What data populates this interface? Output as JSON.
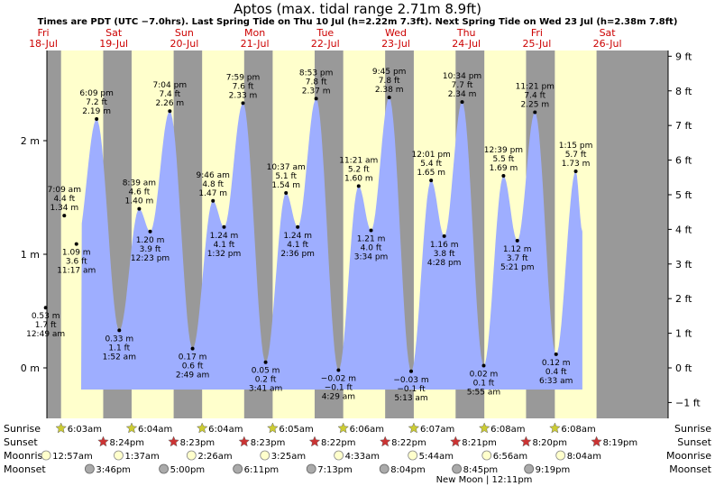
{
  "title": "Aptos (max. tidal range 2.71m 8.9ft)",
  "subtitle": "Times are PDT (UTC −7.0hrs). Last Spring Tide on Thu 10 Jul (h=2.22m 7.3ft). Next Spring Tide on Wed 23 Jul (h=2.38m 7.8ft)",
  "colors": {
    "night": "#999999",
    "day": "#ffffcc",
    "water": "#9eaeff",
    "weekday": "#cc0000",
    "sunrise_star": "#cccc33",
    "sunset_star": "#cc3333",
    "moonrise": "#ffffcc",
    "moonset": "#aaaaaa"
  },
  "chart_data": {
    "type": "area",
    "y_left_ticks": [
      "2 m",
      "1 m",
      "0 m"
    ],
    "y_right_ticks": [
      "9 ft",
      "8 ft",
      "7 ft",
      "6 ft",
      "5 ft",
      "4 ft",
      "3 ft",
      "2 ft",
      "1 ft",
      "0 ft",
      "−1 ft"
    ],
    "ylim_m": [
      -0.75,
      2.92
    ],
    "x_start_day": 18,
    "days": [
      {
        "dow": "Fri",
        "date": "18-Jul"
      },
      {
        "dow": "Sat",
        "date": "19-Jul"
      },
      {
        "dow": "Sun",
        "date": "20-Jul"
      },
      {
        "dow": "Mon",
        "date": "21-Jul"
      },
      {
        "dow": "Tue",
        "date": "22-Jul"
      },
      {
        "dow": "Wed",
        "date": "23-Jul"
      },
      {
        "dow": "Thu",
        "date": "24-Jul"
      },
      {
        "dow": "Fri",
        "date": "25-Jul"
      },
      {
        "dow": "Sat",
        "date": "26-Jul"
      }
    ],
    "tides": [
      {
        "day": 18,
        "hour": 0.82,
        "m": 0.53,
        "lines": [
          "0.53 m",
          "1.7 ft",
          "12:49 am"
        ]
      },
      {
        "day": 18,
        "hour": 7.15,
        "m": 1.34,
        "lines": [
          "7:09 am",
          "4.4 ft",
          "1.34 m"
        ]
      },
      {
        "day": 18,
        "hour": 11.28,
        "m": 1.09,
        "lines": [
          "1.09 m",
          "3.6 ft",
          "11:17 am"
        ]
      },
      {
        "day": 18,
        "hour": 18.15,
        "m": 2.19,
        "lines": [
          "6:09 pm",
          "7.2 ft",
          "2.19 m"
        ]
      },
      {
        "day": 19,
        "hour": 1.87,
        "m": 0.33,
        "lines": [
          "0.33 m",
          "1.1 ft",
          "1:52 am"
        ]
      },
      {
        "day": 19,
        "hour": 8.65,
        "m": 1.4,
        "lines": [
          "8:39 am",
          "4.6 ft",
          "1.40 m"
        ]
      },
      {
        "day": 19,
        "hour": 12.38,
        "m": 1.2,
        "lines": [
          "1.20 m",
          "3.9 ft",
          "12:23 pm"
        ]
      },
      {
        "day": 19,
        "hour": 19.07,
        "m": 2.26,
        "lines": [
          "7:04 pm",
          "7.4 ft",
          "2.26 m"
        ]
      },
      {
        "day": 20,
        "hour": 2.82,
        "m": 0.17,
        "lines": [
          "0.17 m",
          "0.6 ft",
          "2:49 am"
        ]
      },
      {
        "day": 20,
        "hour": 9.77,
        "m": 1.47,
        "lines": [
          "9:46 am",
          "4.8 ft",
          "1.47 m"
        ]
      },
      {
        "day": 20,
        "hour": 13.53,
        "m": 1.24,
        "lines": [
          "1.24 m",
          "4.1 ft",
          "1:32 pm"
        ]
      },
      {
        "day": 20,
        "hour": 19.98,
        "m": 2.33,
        "lines": [
          "7:59 pm",
          "7.6 ft",
          "2.33 m"
        ]
      },
      {
        "day": 21,
        "hour": 3.68,
        "m": 0.05,
        "lines": [
          "0.05 m",
          "0.2 ft",
          "3:41 am"
        ]
      },
      {
        "day": 21,
        "hour": 10.62,
        "m": 1.54,
        "lines": [
          "10:37 am",
          "5.1 ft",
          "1.54 m"
        ]
      },
      {
        "day": 21,
        "hour": 14.6,
        "m": 1.24,
        "lines": [
          "1.24 m",
          "4.1 ft",
          "2:36 pm"
        ]
      },
      {
        "day": 21,
        "hour": 20.88,
        "m": 2.37,
        "lines": [
          "8:53 pm",
          "7.8 ft",
          "2.37 m"
        ]
      },
      {
        "day": 22,
        "hour": 4.48,
        "m": -0.02,
        "lines": [
          "−0.02 m",
          "−0.1 ft",
          "4:29 am"
        ]
      },
      {
        "day": 22,
        "hour": 11.35,
        "m": 1.6,
        "lines": [
          "11:21 am",
          "5.2 ft",
          "1.60 m"
        ]
      },
      {
        "day": 22,
        "hour": 15.57,
        "m": 1.21,
        "lines": [
          "1.21 m",
          "4.0 ft",
          "3:34 pm"
        ]
      },
      {
        "day": 22,
        "hour": 21.75,
        "m": 2.38,
        "lines": [
          "9:45 pm",
          "7.8 ft",
          "2.38 m"
        ]
      },
      {
        "day": 23,
        "hour": 5.22,
        "m": -0.03,
        "lines": [
          "−0.03 m",
          "−0.1 ft",
          "5:13 am"
        ]
      },
      {
        "day": 23,
        "hour": 12.02,
        "m": 1.65,
        "lines": [
          "12:01 pm",
          "5.4 ft",
          "1.65 m"
        ]
      },
      {
        "day": 23,
        "hour": 16.47,
        "m": 1.16,
        "lines": [
          "1.16 m",
          "3.8 ft",
          "4:28 pm"
        ]
      },
      {
        "day": 23,
        "hour": 22.57,
        "m": 2.34,
        "lines": [
          "10:34 pm",
          "7.7 ft",
          "2.34 m"
        ]
      },
      {
        "day": 24,
        "hour": 5.92,
        "m": 0.02,
        "lines": [
          "0.02 m",
          "0.1 ft",
          "5:55 am"
        ]
      },
      {
        "day": 24,
        "hour": 12.65,
        "m": 1.69,
        "lines": [
          "12:39 pm",
          "5.5 ft",
          "1.69 m"
        ]
      },
      {
        "day": 24,
        "hour": 17.35,
        "m": 1.12,
        "lines": [
          "1.12 m",
          "3.7 ft",
          "5:21 pm"
        ]
      },
      {
        "day": 24,
        "hour": 23.35,
        "m": 2.25,
        "lines": [
          "11:21 pm",
          "7.4 ft",
          "2.25 m"
        ]
      },
      {
        "day": 25,
        "hour": 6.55,
        "m": 0.12,
        "lines": [
          "0.12 m",
          "0.4 ft",
          "6:33 am"
        ]
      },
      {
        "day": 25,
        "hour": 13.25,
        "m": 1.73,
        "lines": [
          "1:15 pm",
          "5.7 ft",
          "1.73 m"
        ]
      }
    ],
    "day_periods": [
      {
        "day": 18,
        "sunrise_hour": 6.05,
        "sunset_hour": 20.4
      },
      {
        "day": 19,
        "sunrise_hour": 6.07,
        "sunset_hour": 20.38
      },
      {
        "day": 20,
        "sunrise_hour": 6.07,
        "sunset_hour": 20.38
      },
      {
        "day": 21,
        "sunrise_hour": 6.08,
        "sunset_hour": 20.37
      },
      {
        "day": 22,
        "sunrise_hour": 6.1,
        "sunset_hour": 20.37
      },
      {
        "day": 23,
        "sunrise_hour": 6.12,
        "sunset_hour": 20.35
      },
      {
        "day": 24,
        "sunrise_hour": 6.13,
        "sunset_hour": 20.33
      },
      {
        "day": 25,
        "sunrise_hour": 6.13,
        "sunset_hour": 20.32
      }
    ],
    "data_end": {
      "day": 25,
      "hour": 15.5,
      "m": 1.2
    },
    "data_start": {
      "day": 18,
      "hour": -2.1,
      "m": 2.1
    }
  },
  "rows": {
    "labels": [
      "Sunrise",
      "Sunset",
      "Moonrise",
      "Moonset"
    ],
    "sunrise": [
      {
        "day": 18,
        "hour": 6.05,
        "label": "6:03am"
      },
      {
        "day": 19,
        "hour": 6.07,
        "label": "6:04am"
      },
      {
        "day": 20,
        "hour": 6.07,
        "label": "6:04am"
      },
      {
        "day": 21,
        "hour": 6.08,
        "label": "6:05am"
      },
      {
        "day": 22,
        "hour": 6.1,
        "label": "6:06am"
      },
      {
        "day": 23,
        "hour": 6.12,
        "label": "6:07am"
      },
      {
        "day": 24,
        "hour": 6.13,
        "label": "6:08am"
      },
      {
        "day": 25,
        "hour": 6.13,
        "label": "6:08am"
      }
    ],
    "sunset": [
      {
        "day": 18,
        "hour": 20.4,
        "label": "8:24pm"
      },
      {
        "day": 19,
        "hour": 20.38,
        "label": "8:23pm"
      },
      {
        "day": 20,
        "hour": 20.38,
        "label": "8:23pm"
      },
      {
        "day": 21,
        "hour": 20.37,
        "label": "8:22pm"
      },
      {
        "day": 22,
        "hour": 20.37,
        "label": "8:22pm"
      },
      {
        "day": 23,
        "hour": 20.35,
        "label": "8:21pm"
      },
      {
        "day": 24,
        "hour": 20.33,
        "label": "8:20pm"
      },
      {
        "day": 25,
        "hour": 20.32,
        "label": "8:19pm"
      }
    ],
    "moonrise": [
      {
        "day": 18,
        "hour": 0.95,
        "label": "12:57am"
      },
      {
        "day": 19,
        "hour": 1.62,
        "label": "1:37am"
      },
      {
        "day": 20,
        "hour": 2.43,
        "label": "2:26am"
      },
      {
        "day": 21,
        "hour": 3.42,
        "label": "3:25am"
      },
      {
        "day": 22,
        "hour": 4.55,
        "label": "4:33am"
      },
      {
        "day": 23,
        "hour": 5.73,
        "label": "5:44am"
      },
      {
        "day": 24,
        "hour": 6.93,
        "label": "6:56am"
      },
      {
        "day": 25,
        "hour": 8.07,
        "label": "8:04am"
      }
    ],
    "moonset": [
      {
        "day": 18,
        "hour": 15.77,
        "label": "3:46pm"
      },
      {
        "day": 19,
        "hour": 17.0,
        "label": "5:00pm"
      },
      {
        "day": 20,
        "hour": 18.18,
        "label": "6:11pm"
      },
      {
        "day": 21,
        "hour": 19.22,
        "label": "7:13pm"
      },
      {
        "day": 22,
        "hour": 20.07,
        "label": "8:04pm"
      },
      {
        "day": 23,
        "hour": 20.75,
        "label": "8:45pm"
      },
      {
        "day": 24,
        "hour": 21.32,
        "label": "9:19pm"
      }
    ],
    "new_moon": "New Moon | 12:11pm"
  }
}
